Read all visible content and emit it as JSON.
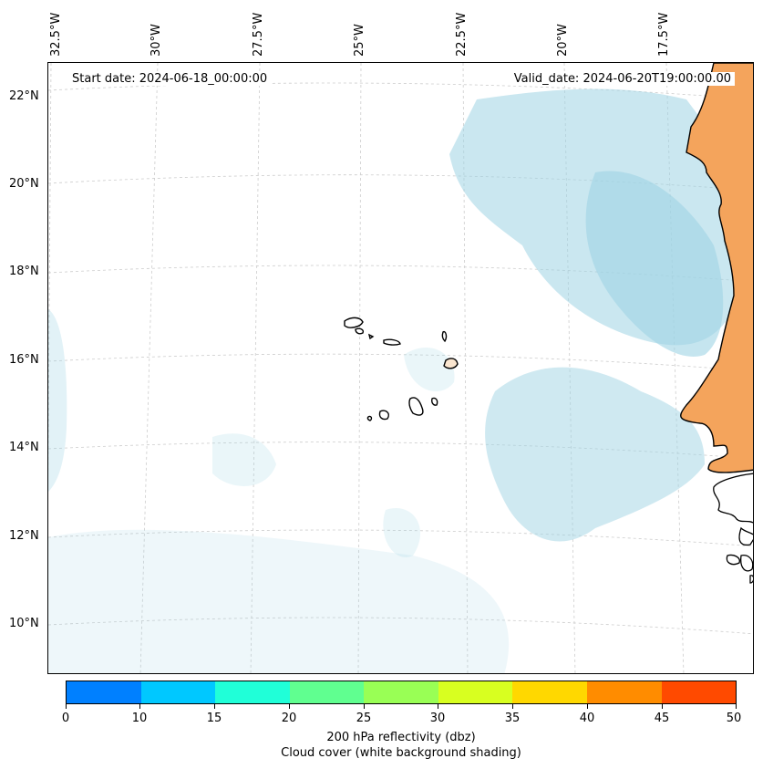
{
  "map": {
    "start_date": "Start date: 2024-06-18_00:00:00",
    "valid_date": "Valid_date: 2024-06-20T19:00:00.00",
    "lon_labels": [
      "32.5°W",
      "30°W",
      "27.5°W",
      "25°W",
      "22.5°W",
      "20°W",
      "17.5°W"
    ],
    "lat_labels": [
      "22°N",
      "20°N",
      "18°N",
      "16°N",
      "14°N",
      "12°N",
      "10°N"
    ],
    "colors": {
      "land": "#f4a45c",
      "cloud": "#9fd4e4",
      "coast": "#000000",
      "grid": "#cccccc"
    }
  },
  "colorbar": {
    "ticks": [
      "0",
      "10",
      "15",
      "20",
      "25",
      "30",
      "35",
      "40",
      "45",
      "50"
    ],
    "colors": [
      "#0080ff",
      "#00c8ff",
      "#20ffd8",
      "#60ff90",
      "#99ff55",
      "#d8ff20",
      "#ffd800",
      "#ff8c00",
      "#ff4a00"
    ],
    "title": "200 hPa reflectivity (dbz)",
    "subtitle": "Cloud cover (white background shading)"
  }
}
